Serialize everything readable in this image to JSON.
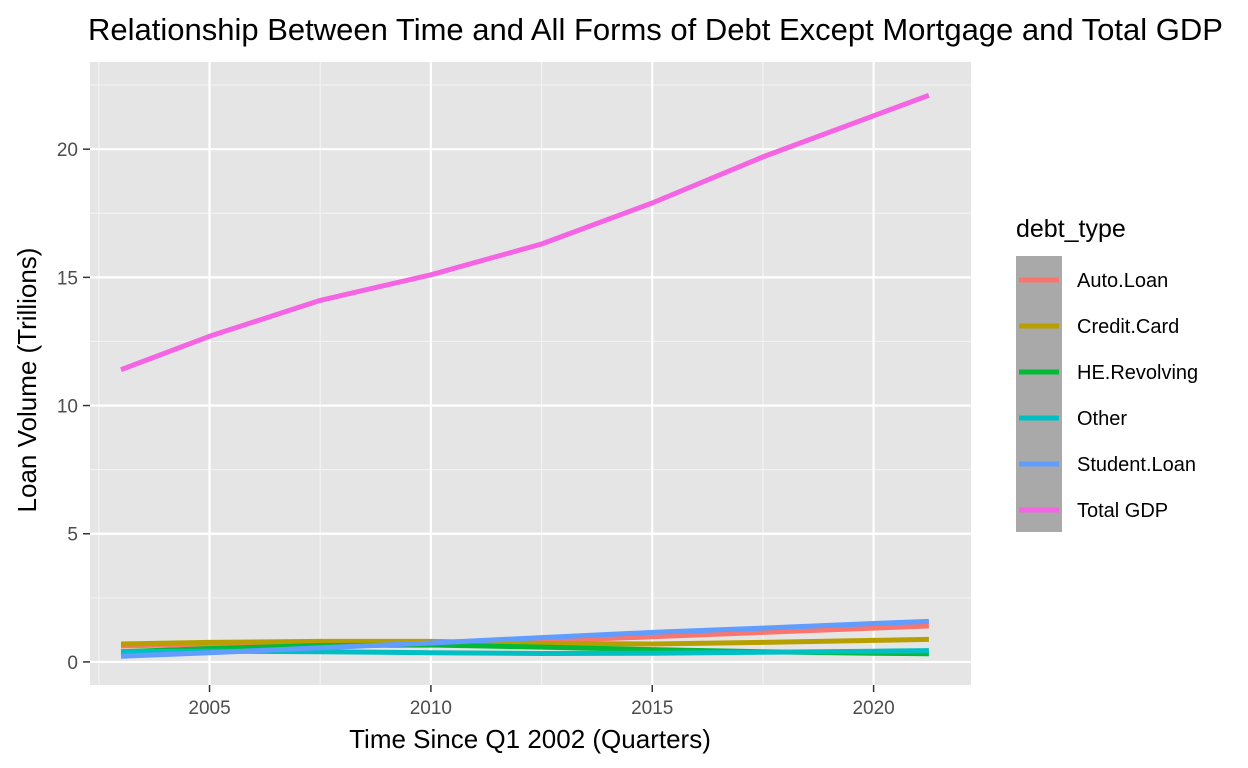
{
  "chart_data": {
    "type": "line",
    "title": "Relationship Between Time and All Forms of Debt Except Mortgage and Total GDP",
    "xlabel": "Time Since Q1 2002 (Quarters)",
    "ylabel": "Loan Volume (Trillions)",
    "xlim": [
      2002.3,
      2022.2
    ],
    "ylim": [
      -0.9,
      23.4
    ],
    "x_ticks": [
      2005,
      2010,
      2015,
      2020
    ],
    "x_minor_ticks": [
      2002.5,
      2007.5,
      2012.5,
      2017.5
    ],
    "y_ticks": [
      0,
      5,
      10,
      15,
      20
    ],
    "y_minor_ticks": [
      2.5,
      7.5,
      12.5,
      17.5,
      22.5
    ],
    "grid": true,
    "legend": {
      "title": "debt_type",
      "position": "right"
    },
    "background": "#e5e5e5",
    "series": [
      {
        "name": "Auto.Loan",
        "color": "#f8766d",
        "x": [
          2003,
          2005,
          2007.5,
          2010,
          2012.5,
          2015,
          2017.5,
          2020,
          2021.25
        ],
        "y": [
          0.62,
          0.7,
          0.76,
          0.74,
          0.82,
          0.98,
          1.15,
          1.32,
          1.4
        ]
      },
      {
        "name": "Credit.Card",
        "color": "#b79f00",
        "x": [
          2003,
          2005,
          2007.5,
          2010,
          2012.5,
          2015,
          2017.5,
          2020,
          2021.25
        ],
        "y": [
          0.7,
          0.76,
          0.8,
          0.8,
          0.72,
          0.7,
          0.76,
          0.84,
          0.88
        ]
      },
      {
        "name": "HE.Revolving",
        "color": "#00ba38",
        "x": [
          2003,
          2005,
          2007.5,
          2010,
          2012.5,
          2015,
          2017.5,
          2020,
          2021.25
        ],
        "y": [
          0.4,
          0.52,
          0.64,
          0.66,
          0.58,
          0.48,
          0.4,
          0.34,
          0.32
        ]
      },
      {
        "name": "Other",
        "color": "#00bfc4",
        "x": [
          2003,
          2005,
          2007.5,
          2010,
          2012.5,
          2015,
          2017.5,
          2020,
          2021.25
        ],
        "y": [
          0.4,
          0.42,
          0.4,
          0.36,
          0.33,
          0.34,
          0.38,
          0.42,
          0.44
        ]
      },
      {
        "name": "Student.Loan",
        "color": "#619cff",
        "x": [
          2003,
          2005,
          2007.5,
          2010,
          2012.5,
          2015,
          2017.5,
          2020,
          2021.25
        ],
        "y": [
          0.22,
          0.36,
          0.55,
          0.74,
          0.95,
          1.15,
          1.32,
          1.5,
          1.58
        ]
      },
      {
        "name": "Total GDP",
        "color": "#f564e3",
        "x": [
          2003,
          2005,
          2007.5,
          2010,
          2012.5,
          2015,
          2017.5,
          2020,
          2021.25
        ],
        "y": [
          11.4,
          12.7,
          14.1,
          15.1,
          16.3,
          17.9,
          19.7,
          21.3,
          22.1
        ]
      }
    ]
  }
}
